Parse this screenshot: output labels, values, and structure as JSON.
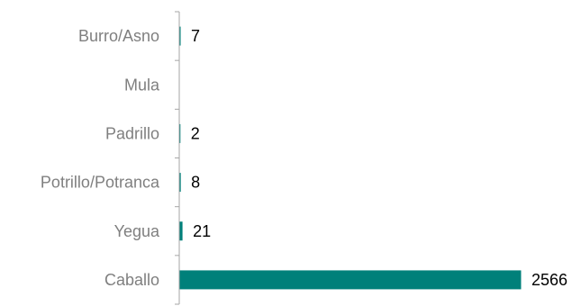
{
  "chart_data": {
    "type": "bar",
    "orientation": "horizontal",
    "categories": [
      "Burro/Asno",
      "Mula",
      "Padrillo",
      "Potrillo/Potranca",
      "Yegua",
      "Caballo"
    ],
    "values": [
      7,
      null,
      2,
      8,
      21,
      2566
    ],
    "data_labels": [
      "7",
      "",
      "2",
      "8",
      "21",
      "2566"
    ],
    "xlim": [
      0,
      2600
    ],
    "bar_color": "#00807a",
    "grid": false,
    "legend": "none"
  }
}
